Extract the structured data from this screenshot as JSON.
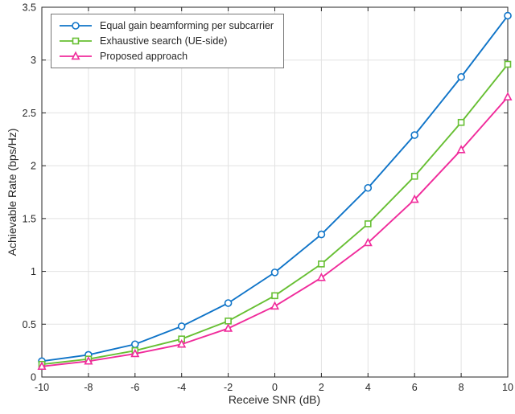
{
  "chart_data": {
    "type": "line",
    "x": [
      -10,
      -8,
      -6,
      -4,
      -2,
      0,
      2,
      4,
      6,
      8,
      10
    ],
    "series": [
      {
        "name": "Equal gain beamforming per subcarrier",
        "color": "#0f74c8",
        "marker": "circle",
        "values": [
          0.15,
          0.21,
          0.31,
          0.48,
          0.7,
          0.99,
          1.35,
          1.79,
          2.29,
          2.84,
          3.42
        ]
      },
      {
        "name": "Exhaustive search (UE-side)",
        "color": "#67bf33",
        "marker": "square",
        "values": [
          0.12,
          0.17,
          0.25,
          0.36,
          0.53,
          0.77,
          1.07,
          1.45,
          1.9,
          2.41,
          2.96
        ]
      },
      {
        "name": "Proposed approach",
        "color": "#f02b9b",
        "marker": "triangle",
        "values": [
          0.1,
          0.15,
          0.22,
          0.31,
          0.46,
          0.67,
          0.94,
          1.27,
          1.68,
          2.15,
          2.65
        ]
      }
    ],
    "xlabel": "Receive SNR (dB)",
    "ylabel": "Achievable Rate (bps/Hz)",
    "xlim": [
      -10,
      10
    ],
    "ylim": [
      0,
      3.5
    ],
    "xticks": [
      -10,
      -8,
      -6,
      -4,
      -2,
      0,
      2,
      4,
      6,
      8,
      10
    ],
    "yticks": [
      0,
      0.5,
      1,
      1.5,
      2,
      2.5,
      3,
      3.5
    ],
    "grid": true,
    "legend_position": "top-left",
    "axis_color": "#262626",
    "grid_color": "#e2e2e2",
    "marker_fill": "#ffffff"
  }
}
